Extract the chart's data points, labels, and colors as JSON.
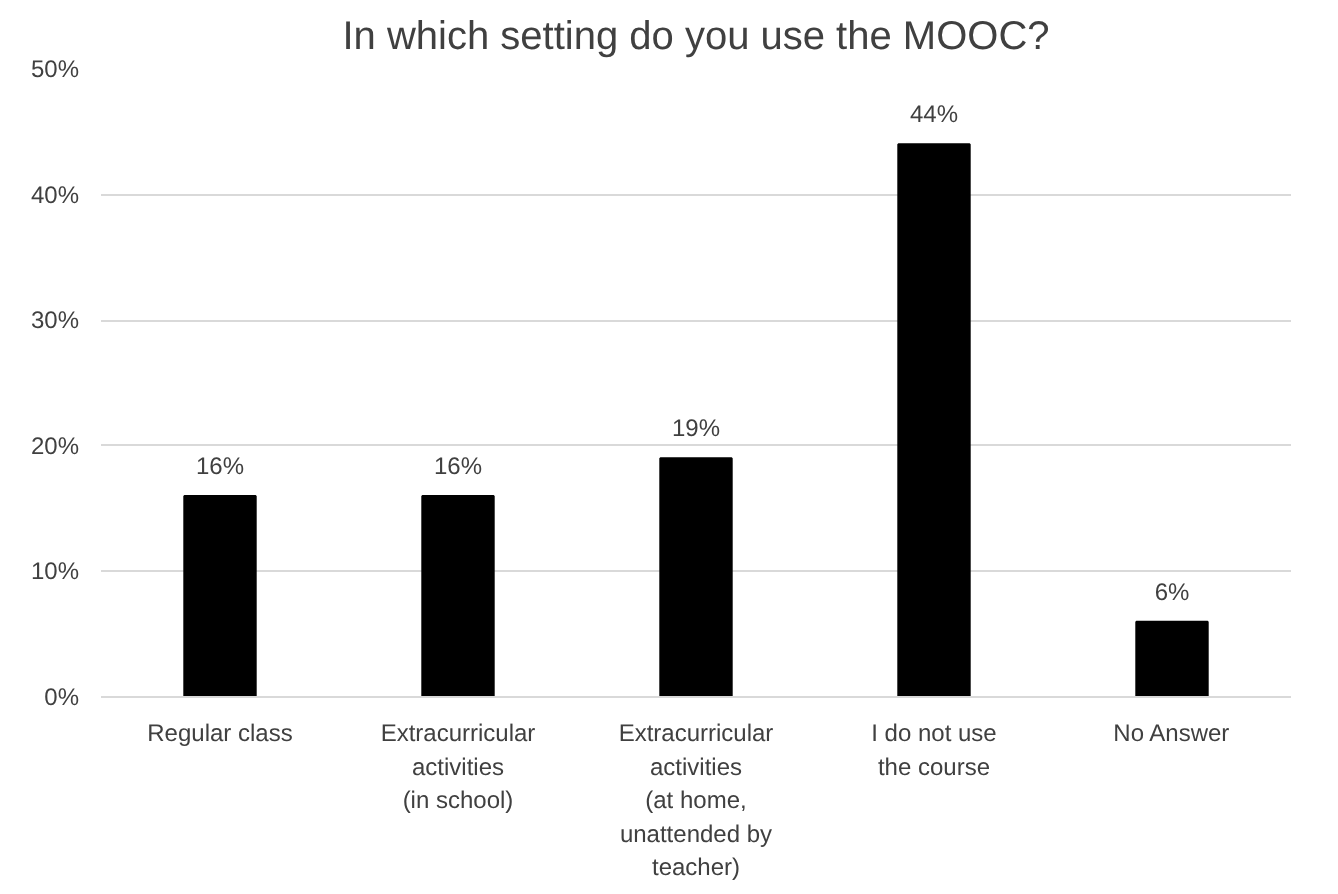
{
  "chart_data": {
    "type": "bar",
    "title": "In which setting do you use the MOOC?",
    "categories": [
      "Regular class",
      "Extracurricular activities (in school)",
      "Extracurricular activities (at home, unattended by teacher)",
      "I do not use the course",
      "No Answer"
    ],
    "values": [
      16,
      16,
      19,
      44,
      6
    ],
    "value_labels": [
      "16%",
      "16%",
      "19%",
      "44%",
      "6%"
    ],
    "color": "#000000",
    "ylim": [
      0,
      50
    ],
    "yticks": [
      {
        "value": 0,
        "label": "0%"
      },
      {
        "value": 10,
        "label": "10%"
      },
      {
        "value": 20,
        "label": "20%"
      },
      {
        "value": 30,
        "label": "30%"
      },
      {
        "value": 40,
        "label": "40%"
      },
      {
        "value": 50,
        "label": "50%"
      }
    ],
    "grid": "y"
  }
}
